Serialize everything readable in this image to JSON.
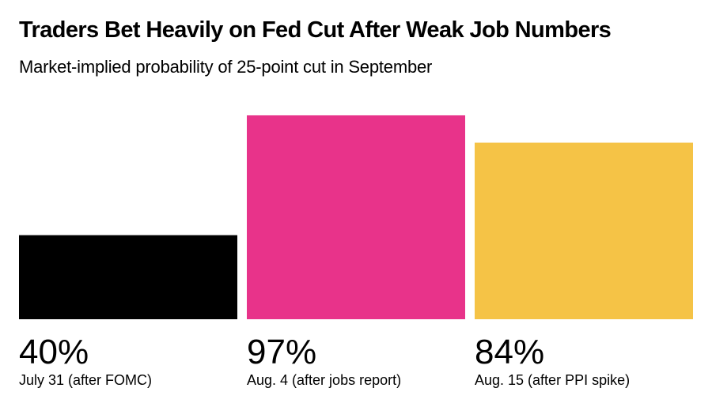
{
  "chart_data": {
    "type": "bar",
    "title": "Traders Bet Heavily on Fed Cut After Weak Job Numbers",
    "subtitle": "Market-implied probability of 25-point cut in September",
    "categories": [
      "July 31 (after FOMC)",
      "Aug. 4 (after jobs report)",
      "Aug. 15 (after PPI spike)"
    ],
    "value_labels": [
      "40%",
      "97%",
      "84%"
    ],
    "values": [
      40,
      97,
      84
    ],
    "colors": [
      "#000000",
      "#e8338a",
      "#f5c346"
    ],
    "ylim": [
      0,
      100
    ],
    "grid": false,
    "legend": "none"
  }
}
